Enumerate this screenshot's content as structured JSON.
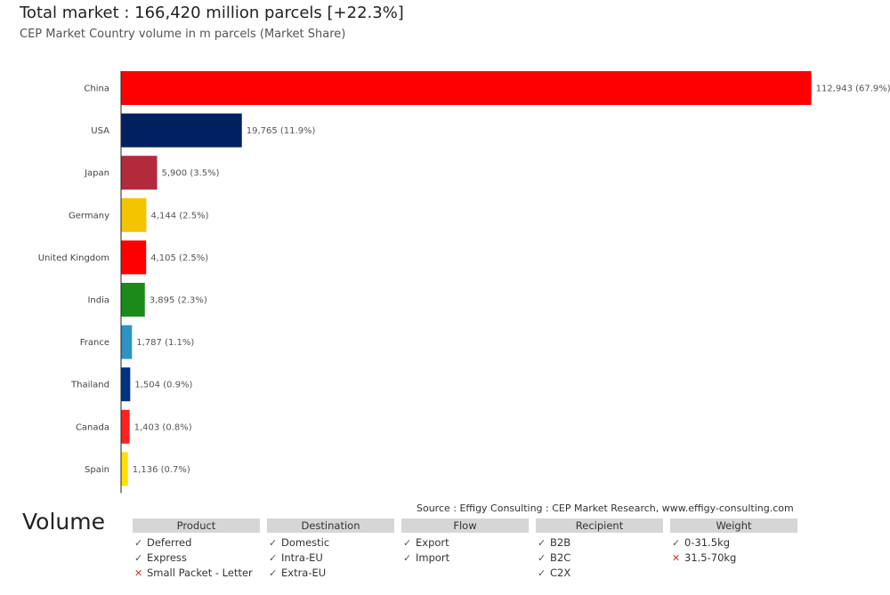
{
  "header": {
    "title": "Total market : 166,420 million parcels [+22.3%]",
    "subtitle": "CEP Market Country volume in m parcels (Market Share)"
  },
  "chart_data": {
    "type": "bar",
    "orientation": "horizontal",
    "categories": [
      "China",
      "USA",
      "Japan",
      "Germany",
      "United Kingdom",
      "India",
      "France",
      "Thailand",
      "Canada",
      "Spain"
    ],
    "values": [
      112943,
      19765,
      5900,
      4144,
      4105,
      3895,
      1787,
      1504,
      1403,
      1136
    ],
    "data_labels": [
      "112,943 (67.9%)",
      "19,765 (11.9%)",
      "5,900 (3.5%)",
      "4,144 (2.5%)",
      "4,105 (2.5%)",
      "3,895 (2.3%)",
      "1,787 (1.1%)",
      "1,504 (0.9%)",
      "1,403 (0.8%)",
      "1,136 (0.7%)"
    ],
    "colors": [
      "#ff0000",
      "#002060",
      "#b22a3c",
      "#f5c400",
      "#ff0000",
      "#1a8a1a",
      "#2e93c4",
      "#00337f",
      "#ff2020",
      "#ffe000"
    ],
    "xlim": [
      0,
      113000
    ],
    "grid": false,
    "legend": "none"
  },
  "footer": {
    "source": "Source : Effigy Consulting : CEP Market Research, www.effigy-consulting.com",
    "volume_label": "Volume"
  },
  "filters": [
    {
      "header": "Product",
      "items": [
        {
          "label": "Deferred",
          "checked": true
        },
        {
          "label": "Express",
          "checked": true
        },
        {
          "label": "Small Packet - Letter",
          "checked": false
        }
      ]
    },
    {
      "header": "Destination",
      "items": [
        {
          "label": "Domestic",
          "checked": true
        },
        {
          "label": "Intra-EU",
          "checked": true
        },
        {
          "label": "Extra-EU",
          "checked": true
        }
      ]
    },
    {
      "header": "Flow",
      "items": [
        {
          "label": "Export",
          "checked": true
        },
        {
          "label": "Import",
          "checked": true
        }
      ]
    },
    {
      "header": "Recipient",
      "items": [
        {
          "label": "B2B",
          "checked": true
        },
        {
          "label": "B2C",
          "checked": true
        },
        {
          "label": "C2X",
          "checked": true
        }
      ]
    },
    {
      "header": "Weight",
      "items": [
        {
          "label": "0-31.5kg",
          "checked": true
        },
        {
          "label": "31.5-70kg",
          "checked": false
        }
      ]
    }
  ]
}
